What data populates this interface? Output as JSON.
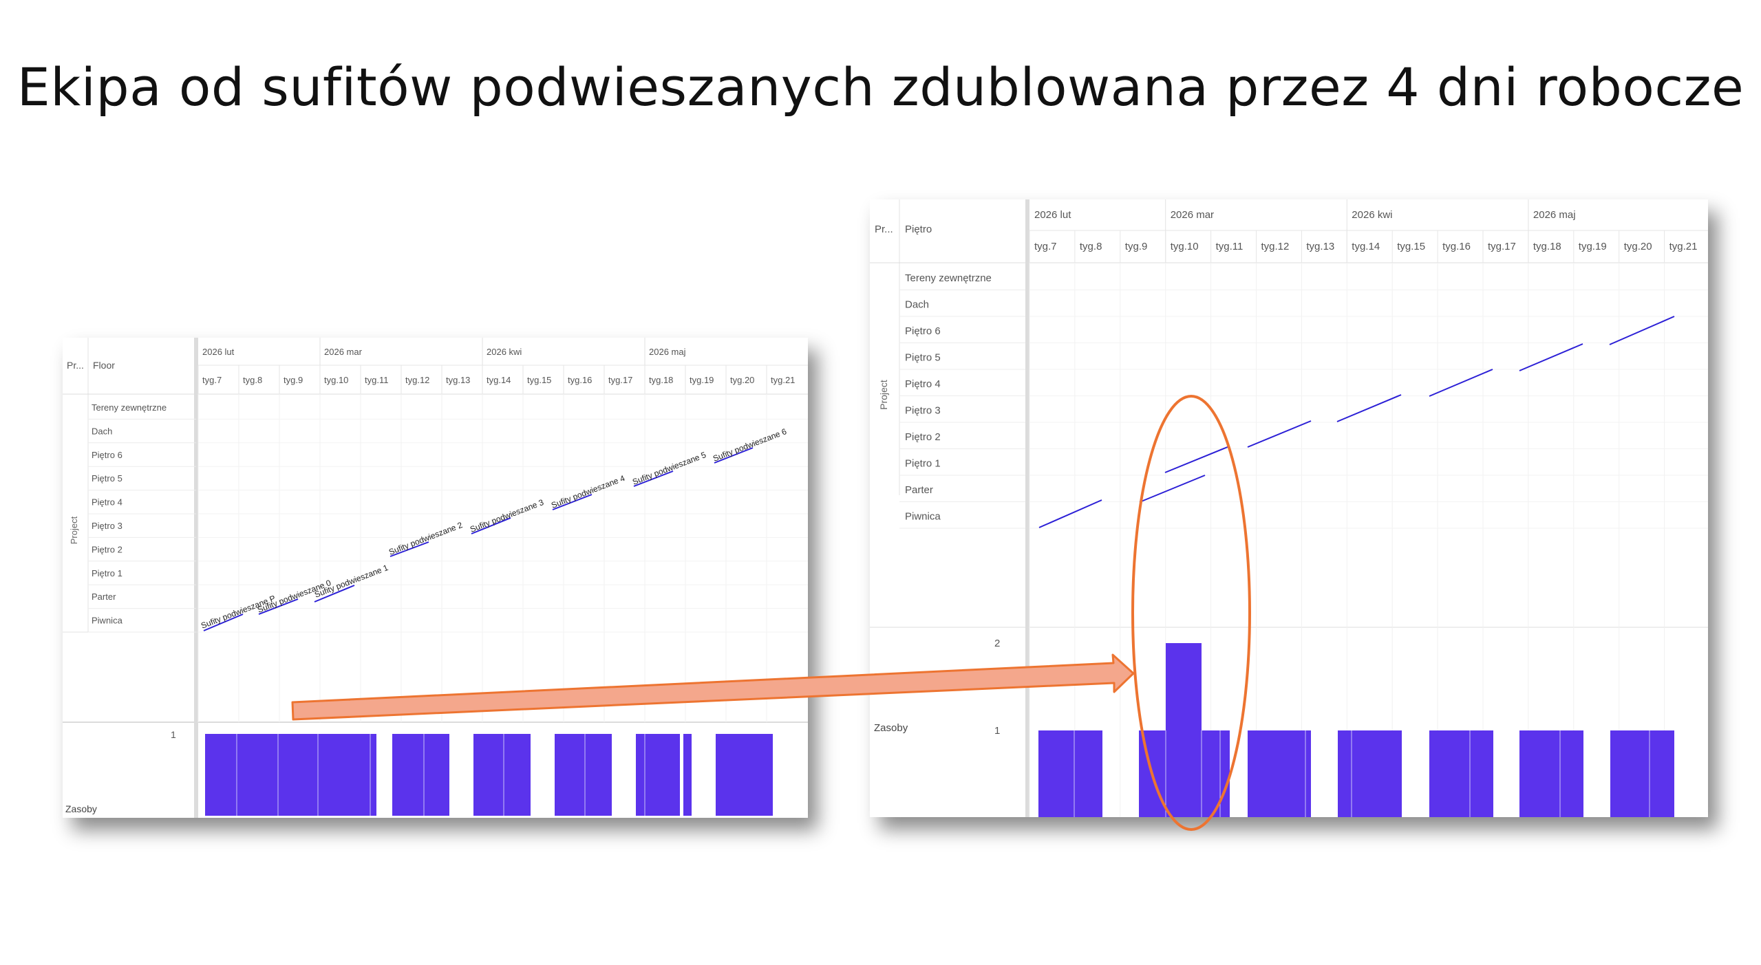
{
  "slide": {
    "title": "Ekipa od sufitów podwieszanych zdublowana przez 4 dni robocze"
  },
  "colors": {
    "bar": "#5b33ec",
    "link": "#2b1fd6",
    "annotation": "#ed7431",
    "arrow_fill": "#f4a78c",
    "grid": "#ececec",
    "header_border": "#dcdcdc"
  },
  "left_chart": {
    "col_project": "Pr...",
    "col_floor": "Floor",
    "side_label": "Project",
    "months": [
      "2026 lut",
      "2026 mar",
      "2026 kwi",
      "2026 maj"
    ],
    "weeks": [
      "tyg.7",
      "tyg.8",
      "tyg.9",
      "tyg.10",
      "tyg.11",
      "tyg.12",
      "tyg.13",
      "tyg.14",
      "tyg.15",
      "tyg.16",
      "tyg.17",
      "tyg.18",
      "tyg.19",
      "tyg.20",
      "tyg.21"
    ],
    "floors": [
      "Tereny zewnętrzne",
      "Dach",
      "Piętro 6",
      "Piętro 5",
      "Piętro 4",
      "Piętro 3",
      "Piętro 2",
      "Piętro 1",
      "Parter",
      "Piwnica"
    ],
    "task_labels": [
      "Sufity podwieszane P",
      "Sufity podwieszane 0",
      "Sufity podwieszane 1",
      "Sufity podwieszane 2",
      "Sufity podwieszane 3",
      "Sufity podwieszane 4",
      "Sufity podwieszane 5",
      "Sufity podwieszane 6"
    ],
    "resource_label": "Zasoby",
    "resource_axis_tick": "1"
  },
  "right_chart": {
    "col_project": "Pr...",
    "col_floor": "Piętro",
    "side_label": "Project",
    "months": [
      "2026 lut",
      "2026 mar",
      "2026 kwi",
      "2026 maj"
    ],
    "weeks": [
      "tyg.7",
      "tyg.8",
      "tyg.9",
      "tyg.10",
      "tyg.11",
      "tyg.12",
      "tyg.13",
      "tyg.14",
      "tyg.15",
      "tyg.16",
      "tyg.17",
      "tyg.18",
      "tyg.19",
      "tyg.20",
      "tyg.21"
    ],
    "floors": [
      "Tereny zewnętrzne",
      "Dach",
      "Piętro 6",
      "Piętro 5",
      "Piętro 4",
      "Piętro 3",
      "Piętro 2",
      "Piętro 1",
      "Parter",
      "Piwnica"
    ],
    "resource_label": "Zasoby",
    "resource_axis_ticks": [
      "2",
      "1"
    ],
    "peak_value": 2,
    "normal_value": 1
  }
}
